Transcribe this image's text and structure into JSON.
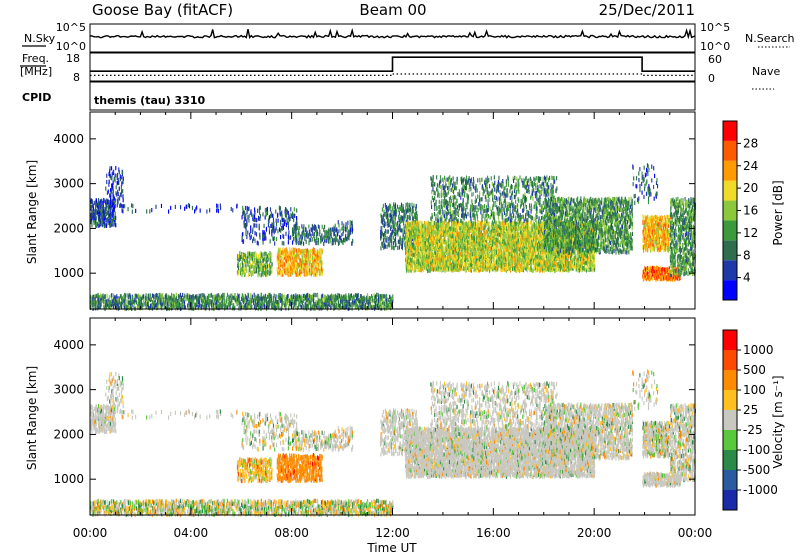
{
  "header": {
    "station": "Goose Bay (fitACF)",
    "beam": "Beam 00",
    "date": "25/Dec/2011"
  },
  "noise_panel": {
    "left_label": "N.Sky",
    "right_label": "N.Search",
    "left_ticks": [
      "10^5",
      "10^0"
    ],
    "right_ticks": [
      "10^5",
      "10^0"
    ]
  },
  "freq_panel": {
    "left_label_line1": "Freq.",
    "left_label_line2": "[MHz]",
    "right_label": "Nave",
    "left_ticks": [
      "18",
      "8"
    ],
    "right_ticks": [
      "60",
      "0"
    ],
    "cpid_label": "CPID",
    "cpid_value": "themis (tau) 3310"
  },
  "colors": {
    "power": [
      "#0000ff",
      "#1e3aa8",
      "#2e6e4e",
      "#3c9a3c",
      "#8cc83c",
      "#f0dc28",
      "#ff9a00",
      "#ff5a00",
      "#ff0000"
    ],
    "velocity": [
      "#1a2aa8",
      "#2a5aa0",
      "#2a8a4a",
      "#5ac83c",
      "#c8c8c0",
      "#ffc020",
      "#ff8c00",
      "#ff4a00",
      "#ff0000"
    ]
  },
  "chart_data": [
    {
      "type": "heatmap",
      "name": "power",
      "ylabel": "Slant Range [km]",
      "ylim": [
        200,
        4600
      ],
      "yticks": [
        "1000",
        "2000",
        "3000",
        "4000"
      ],
      "xlim": [
        0,
        24
      ],
      "colorbar": {
        "label": "Power [dB]",
        "ticks": [
          "28",
          "24",
          "20",
          "16",
          "12",
          "8",
          "4"
        ]
      }
    },
    {
      "type": "heatmap",
      "name": "velocity",
      "ylabel": "Slant Range [km]",
      "xlabel": "Time UT",
      "ylim": [
        200,
        4600
      ],
      "yticks": [
        "1000",
        "2000",
        "3000",
        "4000"
      ],
      "xlim": [
        0,
        24
      ],
      "xticks": [
        "00:00",
        "04:00",
        "08:00",
        "12:00",
        "16:00",
        "20:00",
        "00:00"
      ],
      "colorbar": {
        "label": "Velocity [m s⁻¹]",
        "ticks": [
          "1000",
          "500",
          "100",
          "25",
          "-25",
          "-100",
          "-500",
          "-1000"
        ]
      }
    }
  ],
  "frequency_series": {
    "name": "Freq.",
    "ylim": [
      8,
      18
    ],
    "points": [
      [
        0,
        11.5
      ],
      [
        12,
        11.5
      ],
      [
        12,
        16.5
      ],
      [
        21.9,
        16.5
      ],
      [
        21.9,
        11.5
      ],
      [
        24,
        11.5
      ]
    ]
  },
  "nave_series": {
    "name": "Nave",
    "ylim": [
      0,
      60
    ],
    "points": [
      [
        0,
        12
      ],
      [
        12,
        12
      ],
      [
        12,
        15
      ],
      [
        21.9,
        15
      ],
      [
        21.9,
        12
      ],
      [
        24,
        12
      ]
    ]
  },
  "noise_series": {
    "name": "N.Sky",
    "level": 0.55
  },
  "scatter_regions": [
    {
      "t0": 0.0,
      "t1": 1.0,
      "r0": 2100,
      "r1": 2700,
      "density": 0.55,
      "power": 0.15,
      "vel": 4,
      "velP": 0.85
    },
    {
      "t0": 0.6,
      "t1": 1.3,
      "r0": 2500,
      "r1": 3400,
      "density": 0.2,
      "power": 0.1,
      "vel": 4,
      "velP": 0.8
    },
    {
      "t0": 1.0,
      "t1": 6.0,
      "r0": 2400,
      "r1": 2600,
      "density": 0.08,
      "power": 0.1,
      "vel": 4,
      "velP": 0.7
    },
    {
      "t0": 0.0,
      "t1": 12.0,
      "r0": 250,
      "r1": 550,
      "density": 0.55,
      "power": 0.3,
      "vel": 4,
      "velP": 0.35
    },
    {
      "t0": 5.8,
      "t1": 7.2,
      "r0": 1000,
      "r1": 1500,
      "density": 0.5,
      "power": 0.45,
      "vel": 5,
      "velP": 0.5
    },
    {
      "t0": 7.4,
      "t1": 9.2,
      "r0": 1000,
      "r1": 1600,
      "density": 0.6,
      "power": 0.7,
      "vel": 6,
      "velP": 0.8
    },
    {
      "t0": 6.0,
      "t1": 8.2,
      "r0": 1700,
      "r1": 2500,
      "density": 0.2,
      "power": 0.15,
      "vel": 4,
      "velP": 0.6
    },
    {
      "t0": 8.0,
      "t1": 9.8,
      "r0": 1700,
      "r1": 2100,
      "density": 0.35,
      "power": 0.25,
      "vel": 4,
      "velP": 0.6
    },
    {
      "t0": 9.8,
      "t1": 10.4,
      "r0": 1700,
      "r1": 2200,
      "density": 0.3,
      "power": 0.2,
      "vel": 4,
      "velP": 0.6
    },
    {
      "t0": 11.5,
      "t1": 13.0,
      "r0": 1600,
      "r1": 2600,
      "density": 0.35,
      "power": 0.25,
      "vel": 4,
      "velP": 0.85
    },
    {
      "t0": 12.5,
      "t1": 20.0,
      "r0": 1100,
      "r1": 2200,
      "density": 0.75,
      "power": 0.55,
      "vel": 4,
      "velP": 0.85
    },
    {
      "t0": 13.5,
      "t1": 18.5,
      "r0": 2200,
      "r1": 3200,
      "density": 0.25,
      "power": 0.3,
      "vel": 4,
      "velP": 0.75
    },
    {
      "t0": 18.0,
      "t1": 21.5,
      "r0": 1500,
      "r1": 2700,
      "density": 0.5,
      "power": 0.35,
      "vel": 4,
      "velP": 0.75
    },
    {
      "t0": 21.9,
      "t1": 23.0,
      "r0": 1550,
      "r1": 2300,
      "density": 0.7,
      "power": 0.7,
      "vel": 4,
      "velP": 0.6
    },
    {
      "t0": 21.9,
      "t1": 23.4,
      "r0": 900,
      "r1": 1150,
      "density": 0.8,
      "power": 0.85,
      "vel": 4,
      "velP": 0.85
    },
    {
      "t0": 23.0,
      "t1": 24.0,
      "r0": 1000,
      "r1": 2700,
      "density": 0.45,
      "power": 0.35,
      "vel": 4,
      "velP": 0.7
    },
    {
      "t0": 21.5,
      "t1": 22.5,
      "r0": 2600,
      "r1": 3500,
      "density": 0.12,
      "power": 0.2,
      "vel": 4,
      "velP": 0.6
    }
  ]
}
